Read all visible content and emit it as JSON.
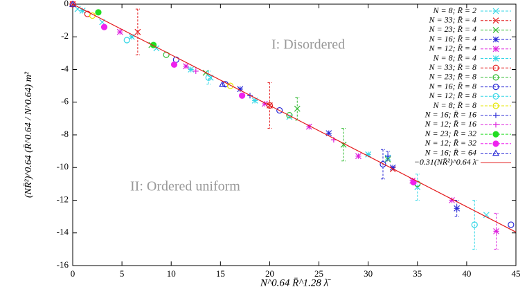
{
  "chart_data": {
    "type": "scatter",
    "x_label": "N^0.64 R̄^1.28 λ̄",
    "y_label": "(NR̄²)^0.64 (R̄^0.64 / N^0.64) m²",
    "annotations": [
      "I: Disordered",
      "II: Ordered uniform"
    ],
    "xlim": [
      0,
      45
    ],
    "xticks": [
      0,
      5,
      10,
      15,
      20,
      25,
      30,
      35,
      40,
      45
    ],
    "ylim": [
      -16,
      0
    ],
    "yticks": [
      -16,
      -14,
      -12,
      -10,
      -8,
      -6,
      -4,
      -2,
      0
    ],
    "legend": "top-right",
    "series": [
      {
        "name": "N = 8; R̄ = 2",
        "color": "#33d6e6",
        "marker": "x",
        "x": [
          0.5,
          3,
          8.5,
          14,
          22,
          32,
          35,
          42
        ],
        "values": [
          -0.3,
          -1.1,
          -2.7,
          -4.5,
          -6.9,
          -9.4,
          -11.2,
          -12.9
        ],
        "errors": [
          null,
          null,
          null,
          null,
          null,
          null,
          0.8,
          null
        ]
      },
      {
        "name": "N = 33; R̄ = 4",
        "color": "#e41a1c",
        "marker": "x",
        "x": [
          0,
          6.6,
          20,
          32.5
        ],
        "values": [
          0,
          -1.7,
          -6.2,
          -10.1
        ],
        "errors": [
          null,
          1.4,
          1.4,
          null
        ]
      },
      {
        "name": "N = 23; R̄ = 4",
        "color": "#33bb33",
        "marker": "x",
        "x": [
          8,
          13.5,
          22.8,
          27.5,
          32
        ],
        "values": [
          -2.5,
          -4.2,
          -6.4,
          -8.6,
          -9.5
        ],
        "errors": [
          null,
          null,
          0.7,
          1,
          null
        ]
      },
      {
        "name": "N = 16; R̄ = 4",
        "color": "#2b2bd6",
        "marker": "star",
        "x": [
          17,
          26,
          32.5,
          39
        ],
        "values": [
          -5.2,
          -7.9,
          -10,
          -12.5
        ],
        "errors": [
          null,
          null,
          null,
          0.5
        ]
      },
      {
        "name": "N = 12; R̄ = 4",
        "color": "#dd22dd",
        "marker": "star",
        "x": [
          4.8,
          11.5,
          19.5,
          24,
          29,
          34.5,
          38.5,
          43
        ],
        "values": [
          -1.7,
          -3.8,
          -6.1,
          -7.5,
          -9.3,
          -10.8,
          -12,
          -13.9
        ],
        "errors": [
          null,
          null,
          null,
          null,
          null,
          null,
          null,
          1.1
        ]
      },
      {
        "name": "N = 8; R̄ = 4",
        "color": "#33d6e6",
        "marker": "star",
        "x": [
          1,
          6,
          12,
          18.5,
          30
        ],
        "values": [
          -0.4,
          -2,
          -4,
          -5.9,
          -9.2
        ]
      },
      {
        "name": "N = 33; R̄ = 8",
        "color": "#e41a1c",
        "marker": "circle",
        "x": [
          0,
          1.5,
          20
        ],
        "values": [
          0,
          -0.6,
          -6.2
        ]
      },
      {
        "name": "N = 23; R̄ = 8",
        "color": "#33bb33",
        "marker": "circle",
        "x": [
          9.5,
          22,
          35
        ],
        "values": [
          -3.1,
          -6.8,
          -11
        ]
      },
      {
        "name": "N = 16; R̄ = 8",
        "color": "#2b2bd6",
        "marker": "circle",
        "x": [
          10.5,
          15.5,
          21,
          31.5,
          44.5
        ],
        "values": [
          -3.4,
          -4.9,
          -6.5,
          -9.8,
          -13.5
        ],
        "errors": [
          null,
          null,
          null,
          0.9,
          null
        ]
      },
      {
        "name": "N = 12; R̄ = 8",
        "color": "#33d6e6",
        "marker": "circle",
        "x": [
          5.5,
          13.8,
          40.8
        ],
        "values": [
          -2.2,
          -4.5,
          -13.5
        ],
        "errors": [
          null,
          0.4,
          1.5
        ]
      },
      {
        "name": "N = 8; R̄ = 8",
        "color": "#e6e600",
        "marker": "circle",
        "x": [
          2,
          16
        ],
        "values": [
          -0.7,
          -5
        ]
      },
      {
        "name": "N = 16; R̄ = 16",
        "color": "#2b2bd6",
        "marker": "plus",
        "x": [
          18,
          32
        ],
        "values": [
          -5.6,
          -9.3
        ],
        "errors": [
          null,
          0.3
        ]
      },
      {
        "name": "N = 12; R̄ = 16",
        "color": "#dd22dd",
        "marker": "plus",
        "x": [
          12.5,
          26.5
        ],
        "values": [
          -4.1,
          -8.3
        ]
      },
      {
        "name": "N = 23; R̄ = 32",
        "color": "#22dd22",
        "marker": "filled-circle",
        "x": [
          2.6,
          8.2
        ],
        "values": [
          -0.5,
          -2.5
        ]
      },
      {
        "name": "N = 12; R̄ = 32",
        "color": "#ee22ee",
        "marker": "filled-circle",
        "x": [
          3.2,
          10.3,
          17.2,
          34.6
        ],
        "values": [
          -1.4,
          -3.7,
          -5.6,
          -10.9
        ]
      },
      {
        "name": "N = 16; R̄ = 64",
        "color": "#2b2bd6",
        "marker": "triangle",
        "x": [
          0,
          15.2
        ],
        "values": [
          0,
          -4.9
        ]
      },
      {
        "name": "−0.31(NR̄²)^0.64 λ̄",
        "color": "#e41a1c",
        "marker": "line",
        "x": [
          0,
          45
        ],
        "values": [
          0,
          -13.95
        ]
      }
    ]
  }
}
